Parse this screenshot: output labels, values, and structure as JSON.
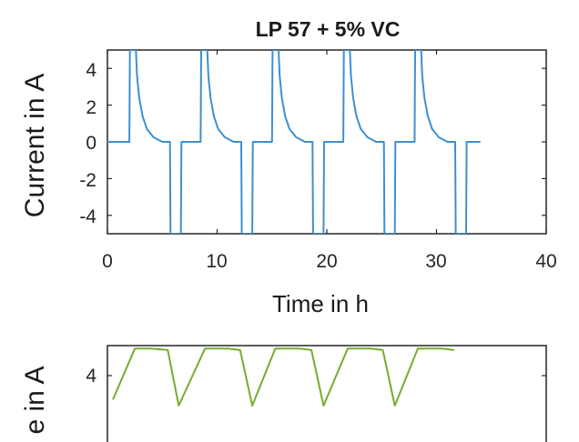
{
  "chart_data": [
    {
      "type": "line",
      "title": "LP 57 + 5% VC",
      "xlabel": "Time in h",
      "ylabel": "Current in A",
      "xlim": [
        0,
        40
      ],
      "ylim": [
        -5,
        5
      ],
      "xticks": [
        "0",
        "10",
        "20",
        "30",
        "40"
      ],
      "yticks": [
        "4",
        "2",
        "0",
        "-2",
        "-4"
      ],
      "grid": false,
      "color": "#3d8fd1",
      "series": [
        {
          "x": [
            0,
            2.0,
            2.05,
            2.6,
            2.7,
            2.9,
            3.2,
            3.6,
            4.2,
            5.0,
            5.7,
            5.75,
            6.7,
            6.75,
            8.5,
            8.55,
            9.1,
            9.2,
            9.4,
            9.7,
            10.1,
            10.7,
            11.5,
            12.2,
            12.25,
            13.2,
            13.25,
            15.0,
            15.05,
            15.6,
            15.7,
            15.9,
            16.2,
            16.6,
            17.2,
            18.0,
            18.7,
            18.75,
            19.7,
            19.75,
            21.5,
            21.55,
            22.1,
            22.2,
            22.4,
            22.7,
            23.1,
            23.7,
            24.5,
            25.2,
            25.25,
            26.2,
            26.25,
            28.0,
            28.05,
            28.6,
            28.7,
            28.9,
            29.2,
            29.6,
            30.2,
            31.0,
            31.7,
            31.75,
            32.7,
            32.75,
            34.0
          ],
          "y": [
            0,
            0,
            5,
            5,
            3.6,
            2.4,
            1.4,
            0.7,
            0.25,
            0,
            0,
            -5,
            -5,
            0,
            0,
            5,
            5,
            3.6,
            2.4,
            1.4,
            0.7,
            0.25,
            0,
            0,
            -5,
            -5,
            0,
            0,
            5,
            5,
            3.6,
            2.4,
            1.4,
            0.7,
            0.25,
            0,
            0,
            -5,
            -5,
            0,
            0,
            5,
            5,
            3.6,
            2.4,
            1.4,
            0.7,
            0.25,
            0,
            0,
            -5,
            -5,
            0,
            0,
            5,
            5,
            3.6,
            2.4,
            1.4,
            0.7,
            0.25,
            0,
            0,
            -5,
            -5,
            0,
            0
          ]
        }
      ]
    },
    {
      "type": "line",
      "ylabel": "e in A",
      "yticks": [
        "4"
      ],
      "grid": false,
      "color": "#77ac30",
      "series": [
        {
          "x": [
            0.5,
            2.5,
            4.0,
            5.5,
            6.5,
            8.9,
            11.0,
            12.1,
            13.2,
            15.3,
            17.5,
            18.6,
            19.7,
            21.9,
            24.0,
            25.1,
            26.2,
            28.3,
            30.5,
            31.6
          ],
          "y": [
            3.2,
            4.9,
            4.9,
            4.85,
            3.0,
            4.9,
            4.9,
            4.85,
            3.0,
            4.9,
            4.9,
            4.85,
            3.0,
            4.9,
            4.9,
            4.85,
            3.0,
            4.9,
            4.9,
            4.85
          ]
        }
      ]
    }
  ]
}
